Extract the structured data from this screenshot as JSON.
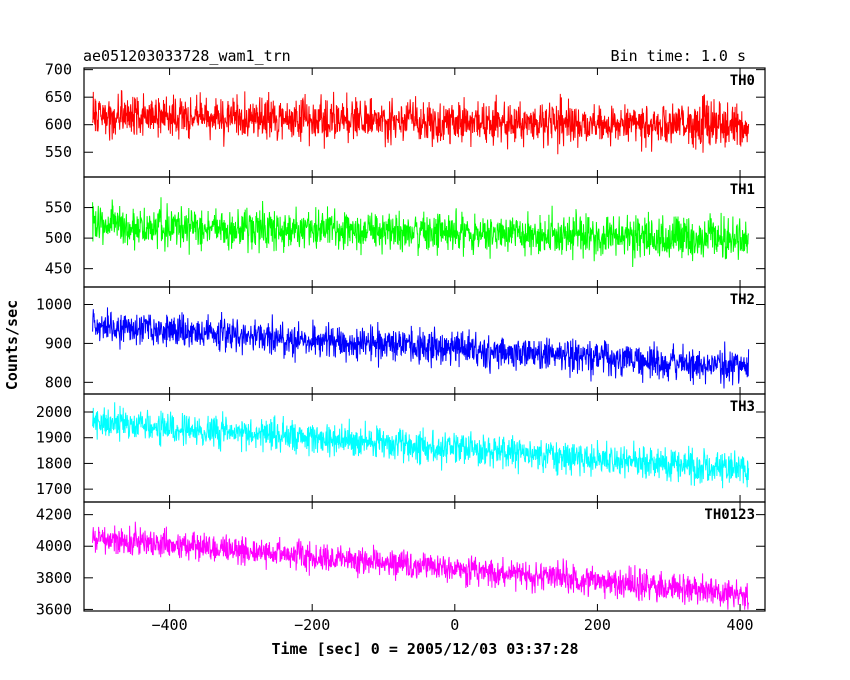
{
  "header": {
    "title": "ae051203033728_wam1_trn",
    "bin_time": "Bin time: 1.0 s"
  },
  "chart_data": {
    "type": "line",
    "title": "ae051203033728_wam1_trn",
    "bin_time_s": 1.0,
    "xlabel": "Time [sec] 0 = 2005/12/03 03:37:28",
    "ylabel": "Counts/sec",
    "xlim": [
      -520,
      435
    ],
    "x_range_data": [
      -508,
      412
    ],
    "x_ticks": [
      -400,
      -200,
      0,
      200,
      400
    ],
    "x_tick_labels": [
      "−400",
      "−200",
      "0",
      "200",
      "400"
    ],
    "grid": false,
    "panels": [
      {
        "name": "TH0",
        "color": "#ff0000",
        "ylim": [
          505,
          703
        ],
        "y_ticks": [
          550,
          600,
          650,
          700
        ],
        "trend_start": 615,
        "trend_end": 598,
        "noise_amplitude": 38,
        "series": [
          {
            "name": "TH0",
            "x": [
              -508,
              -400,
              -300,
              -200,
              -100,
              0,
              100,
              200,
              300,
              412
            ],
            "y": [
              615,
              612,
              608,
              606,
              604,
              603,
              602,
              600,
              599,
              598
            ]
          }
        ]
      },
      {
        "name": "TH1",
        "color": "#00ff00",
        "ylim": [
          420,
          600
        ],
        "y_ticks": [
          450,
          500,
          550
        ],
        "trend_start": 522,
        "trend_end": 498,
        "noise_amplitude": 32,
        "series": [
          {
            "name": "TH1",
            "x": [
              -508,
              -400,
              -300,
              -200,
              -100,
              0,
              100,
              200,
              300,
              412
            ],
            "y": [
              522,
              520,
              517,
              514,
              512,
              509,
              506,
              504,
              501,
              498
            ]
          }
        ]
      },
      {
        "name": "TH2",
        "color": "#0000ff",
        "ylim": [
          770,
          1045
        ],
        "y_ticks": [
          800,
          900,
          1000
        ],
        "trend_start": 945,
        "trend_end": 838,
        "noise_amplitude": 42,
        "series": [
          {
            "name": "TH2",
            "x": [
              -508,
              -400,
              -300,
              -200,
              -100,
              0,
              100,
              200,
              300,
              412
            ],
            "y": [
              945,
              933,
              921,
              909,
              898,
              886,
              874,
              862,
              851,
              838
            ]
          }
        ]
      },
      {
        "name": "TH3",
        "color": "#00ffff",
        "ylim": [
          1650,
          2070
        ],
        "y_ticks": [
          1700,
          1800,
          1900,
          2000
        ],
        "trend_start": 1960,
        "trend_end": 1775,
        "noise_amplitude": 62,
        "series": [
          {
            "name": "TH3",
            "x": [
              -508,
              -400,
              -300,
              -200,
              -100,
              0,
              100,
              200,
              300,
              412
            ],
            "y": [
              1960,
              1938,
              1918,
              1898,
              1877,
              1857,
              1837,
              1817,
              1796,
              1775
            ]
          }
        ]
      },
      {
        "name": "TH0123",
        "color": "#ff00ff",
        "ylim": [
          3590,
          4280
        ],
        "y_ticks": [
          3600,
          3800,
          4000,
          4200
        ],
        "trend_start": 4050,
        "trend_end": 3700,
        "noise_amplitude": 90,
        "series": [
          {
            "name": "TH0123",
            "x": [
              -508,
              -400,
              -300,
              -200,
              -100,
              0,
              100,
              200,
              300,
              412
            ],
            "y": [
              4050,
              4009,
              3971,
              3933,
              3895,
              3857,
              3819,
              3781,
              3742,
              3700
            ]
          }
        ]
      }
    ]
  }
}
